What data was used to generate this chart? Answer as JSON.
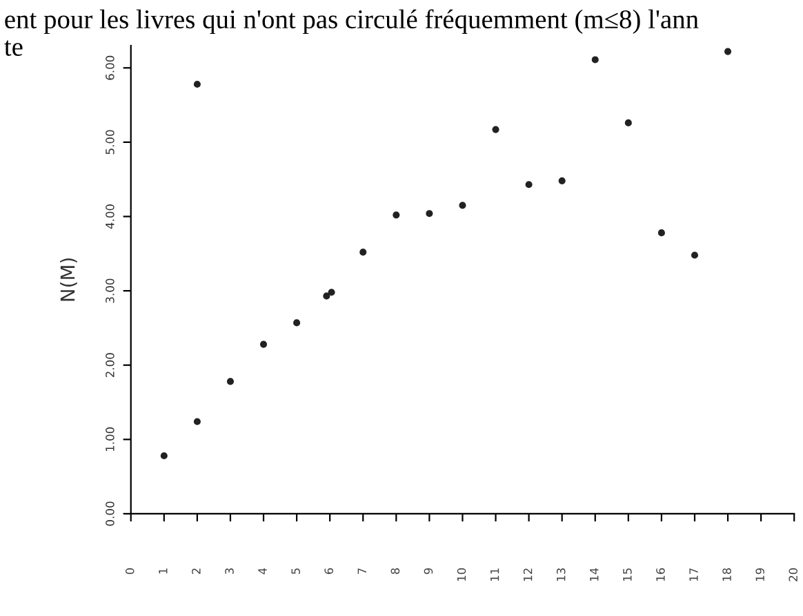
{
  "chart_data": {
    "type": "scatter",
    "annotations": [
      "ent pour les livres qui n'ont pas circulé fréquemment (m≤8) l'ann",
      "te"
    ],
    "ylabel": "N(M)",
    "series": [
      {
        "color": "#222222",
        "x": [
          1,
          2,
          2,
          3,
          4,
          5,
          5.9,
          6.05,
          7,
          8,
          9,
          10,
          11,
          12,
          13,
          14,
          15,
          16,
          17,
          18
        ],
        "values": [
          0.78,
          1.24,
          5.78,
          1.78,
          2.28,
          2.57,
          2.93,
          2.98,
          3.52,
          4.02,
          4.04,
          4.15,
          5.17,
          4.43,
          4.48,
          6.11,
          5.26,
          3.78,
          3.48,
          6.22
        ]
      }
    ],
    "xlim": [
      0,
      20
    ],
    "xticks": [
      0,
      1,
      2,
      3,
      4,
      5,
      6,
      7,
      8,
      9,
      10,
      11,
      12,
      13,
      14,
      15,
      16,
      17,
      18,
      19,
      20
    ],
    "ylim": [
      0,
      6.3
    ],
    "yticks": [
      {
        "value": 0,
        "label": "0.00"
      },
      {
        "value": 1,
        "label": "1.00"
      },
      {
        "value": 2,
        "label": "2.00"
      },
      {
        "value": 3,
        "label": "3.00"
      },
      {
        "value": 4,
        "label": "4.00"
      },
      {
        "value": 5,
        "label": "5.00"
      },
      {
        "value": 6,
        "label": "6.00"
      }
    ],
    "marker": "circle",
    "grid": false,
    "legend": false
  }
}
